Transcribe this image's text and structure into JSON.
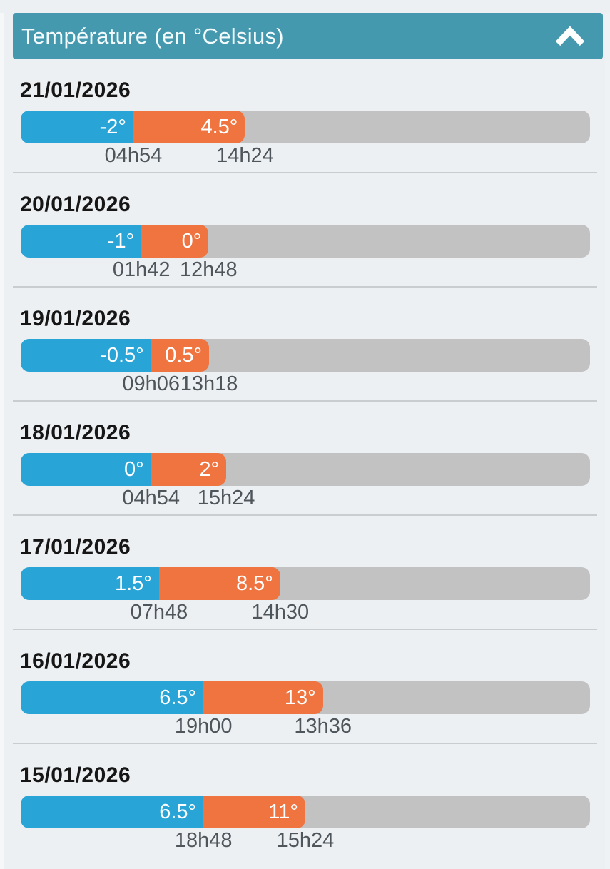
{
  "header": {
    "title": "Température (en °Celsius)",
    "collapse_icon": "chevron-up-icon"
  },
  "colors": {
    "page_bg": "#edf0f2",
    "header_bg": "#4599af",
    "min_bar": "#29a4d6",
    "max_bar": "#ef7440",
    "track": "#c2c2c3",
    "date_text": "#161616",
    "time_text": "#4e565c",
    "separator": "#c9cdd0"
  },
  "chart_data": {
    "type": "bar",
    "orientation": "horizontal",
    "title": "Température (en °Celsius)",
    "legend": "blue segment = daily minimum temperature with time of occurrence; orange segment = daily maximum temperature with time of occurrence; gray = remaining scale",
    "days": [
      {
        "date": "21/01/2026",
        "min_temp": -2,
        "min_temp_label": "-2°",
        "min_time": "04h54",
        "max_temp": 4.5,
        "max_temp_label": "4.5°",
        "max_time": "14h24",
        "min_end_pct": 19.8,
        "max_end_pct": 39.4
      },
      {
        "date": "20/01/2026",
        "min_temp": -1,
        "min_temp_label": "-1°",
        "min_time": "01h42",
        "max_temp": 0,
        "max_temp_label": "0°",
        "max_time": "12h48",
        "min_end_pct": 21.2,
        "max_end_pct": 33.0
      },
      {
        "date": "19/01/2026",
        "min_temp": -0.5,
        "min_temp_label": "-0.5°",
        "min_time": "09h06",
        "max_temp": 0.5,
        "max_temp_label": "0.5°",
        "max_time": "13h18",
        "min_end_pct": 22.9,
        "max_end_pct": 33.1
      },
      {
        "date": "18/01/2026",
        "min_temp": 0,
        "min_temp_label": "0°",
        "min_time": "04h54",
        "max_temp": 2,
        "max_temp_label": "2°",
        "max_time": "15h24",
        "min_end_pct": 22.9,
        "max_end_pct": 36.1
      },
      {
        "date": "17/01/2026",
        "min_temp": 1.5,
        "min_temp_label": "1.5°",
        "min_time": "07h48",
        "max_temp": 8.5,
        "max_temp_label": "8.5°",
        "max_time": "14h30",
        "min_end_pct": 24.3,
        "max_end_pct": 45.6
      },
      {
        "date": "16/01/2026",
        "min_temp": 6.5,
        "min_temp_label": "6.5°",
        "min_time": "19h00",
        "max_temp": 13,
        "max_temp_label": "13°",
        "max_time": "13h36",
        "min_end_pct": 32.1,
        "max_end_pct": 53.1
      },
      {
        "date": "15/01/2026",
        "min_temp": 6.5,
        "min_temp_label": "6.5°",
        "min_time": "18h48",
        "max_temp": 11,
        "max_temp_label": "11°",
        "max_time": "15h24",
        "min_end_pct": 32.1,
        "max_end_pct": 50.0
      }
    ]
  }
}
